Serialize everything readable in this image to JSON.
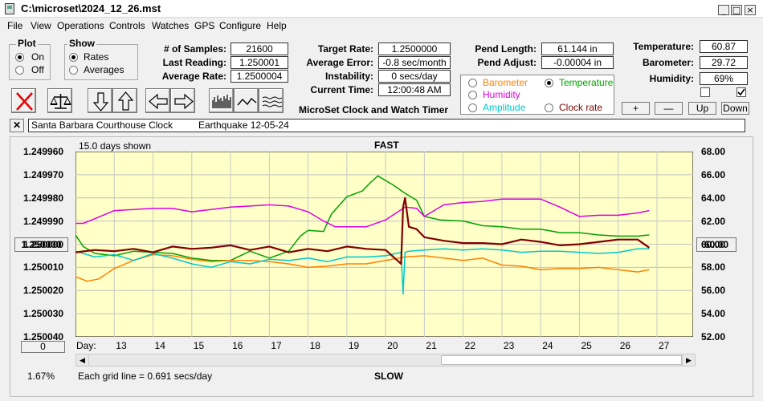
{
  "window": {
    "title": "C:\\microset\\2024_12_26.mst"
  },
  "menu": [
    "File",
    "View",
    "Operations",
    "Controls",
    "Watches",
    "GPS",
    "Configure",
    "Help"
  ],
  "plot_group": {
    "title": "Plot",
    "options": [
      "On",
      "Off"
    ],
    "selected": "On"
  },
  "show_group": {
    "title": "Show",
    "options": [
      "Rates",
      "Averages"
    ],
    "selected": "Rates"
  },
  "stats": {
    "samples_label": "# of Samples:",
    "samples": "21600",
    "last_label": "Last Reading:",
    "last": "1.250001",
    "avg_rate_label": "Average Rate:",
    "avg_rate": "1.2500004"
  },
  "rates": {
    "target_label": "Target Rate:",
    "target": "1.2500000",
    "avg_error_label": "Average Error:",
    "avg_error": "-0.8 sec/month",
    "instability_label": "Instability:",
    "instability": "0 secs/day",
    "time_label": "Current Time:",
    "time": "12:00:48 AM"
  },
  "app_name": "MicroSet Clock and Watch Timer",
  "pend": {
    "length_label": "Pend Length:",
    "length": "61.144 in",
    "adjust_label": "Pend Adjust:",
    "adjust": "-0.00004 in"
  },
  "env": {
    "temp_label": "Temperature:",
    "temp": "60.87",
    "baro_label": "Barometer:",
    "baro": "29.72",
    "hum_label": "Humidity:",
    "hum": "69%"
  },
  "legend": {
    "items": [
      {
        "label": "Barometer",
        "color": "#ff8000",
        "selected": false
      },
      {
        "label": "Temperature",
        "color": "#00a000",
        "selected": true
      },
      {
        "label": "Humidity",
        "color": "#e000e0",
        "selected": false
      },
      {
        "label": "Clock rate",
        "color": "#800000",
        "selected": false
      },
      {
        "label": "Amplitude",
        "color": "#00c8c8",
        "selected": false
      }
    ]
  },
  "adjust_buttons": [
    "+",
    "—",
    "Up",
    "Down"
  ],
  "checkboxes": [
    false,
    true
  ],
  "notes": {
    "clock": "Santa Barbara Courthouse Clock",
    "event": "Earthquake 12-05-24"
  },
  "chart": {
    "days_shown": "15.0 days shown",
    "fast_label": "FAST",
    "slow_label": "SLOW",
    "left_button": "1.250000",
    "right_button": "60.00",
    "zero_button": "0",
    "percent": "1.67%",
    "grid_note": "Each grid line = 0.691 secs/day",
    "day_label": "Day:"
  },
  "chart_data": {
    "type": "line",
    "y_left_ticks": [
      "1.249960",
      "1.249970",
      "1.249980",
      "1.249990",
      "1.250000",
      "1.250010",
      "1.250020",
      "1.250030",
      "1.250040"
    ],
    "y_right_ticks": [
      "68.00",
      "66.00",
      "64.00",
      "62.00",
      "60.00",
      "58.00",
      "56.00",
      "54.00",
      "52.00"
    ],
    "y_right_range": [
      52,
      68
    ],
    "x_range": [
      12,
      27
    ],
    "x_ticks": [
      13,
      14,
      15,
      16,
      17,
      18,
      19,
      20,
      21,
      22,
      23,
      24,
      25,
      26,
      27
    ],
    "grid": true,
    "series": [
      {
        "name": "Temperature",
        "color": "#00a000",
        "x": [
          12.0,
          12.2,
          12.5,
          13.0,
          13.5,
          14.0,
          14.5,
          15.0,
          15.5,
          16.0,
          16.5,
          17.0,
          17.5,
          17.8,
          18.0,
          18.4,
          18.6,
          19.0,
          19.4,
          19.6,
          19.8,
          20.2,
          20.5,
          20.8,
          21.0,
          21.4,
          22.0,
          22.5,
          23.0,
          23.5,
          24.0,
          24.5,
          25.0,
          25.5,
          26.0,
          26.5,
          26.8
        ],
        "y": [
          60.8,
          59.8,
          59.2,
          59.0,
          59.4,
          59.3,
          59.2,
          58.8,
          58.6,
          58.6,
          59.4,
          58.8,
          59.4,
          60.7,
          61.2,
          61.1,
          62.6,
          64.1,
          64.6,
          65.3,
          65.9,
          65.1,
          64.4,
          63.8,
          62.4,
          62.1,
          62.0,
          61.6,
          61.5,
          61.3,
          61.3,
          61.0,
          61.0,
          60.8,
          60.7,
          60.7,
          60.8
        ]
      },
      {
        "name": "Humidity",
        "color": "#e000e0",
        "x": [
          12.0,
          12.2,
          12.5,
          13.0,
          13.5,
          14.0,
          14.5,
          15.0,
          15.5,
          16.0,
          16.5,
          17.0,
          17.5,
          18.0,
          18.4,
          18.7,
          19.0,
          19.5,
          20.0,
          20.5,
          20.8,
          21.0,
          21.5,
          22.0,
          22.5,
          23.0,
          23.5,
          24.0,
          24.5,
          25.0,
          25.5,
          26.0,
          26.5,
          26.8
        ],
        "y": [
          61.8,
          61.8,
          62.2,
          62.9,
          63.0,
          63.1,
          63.1,
          62.8,
          63.0,
          63.2,
          63.3,
          63.4,
          63.3,
          62.8,
          62.0,
          61.5,
          61.5,
          61.5,
          62.1,
          63.2,
          63.1,
          62.4,
          63.4,
          63.6,
          63.7,
          63.9,
          63.9,
          63.9,
          63.2,
          62.4,
          62.5,
          62.5,
          62.7,
          62.9
        ]
      },
      {
        "name": "Barometer",
        "color": "#ff8000",
        "x": [
          12.0,
          12.3,
          12.6,
          13.0,
          13.5,
          14.0,
          14.5,
          15.0,
          15.5,
          16.0,
          16.5,
          17.0,
          17.5,
          18.0,
          18.5,
          19.0,
          19.5,
          20.0,
          20.5,
          21.0,
          21.5,
          22.0,
          22.5,
          23.0,
          23.5,
          24.0,
          24.5,
          25.0,
          25.5,
          26.0,
          26.5,
          26.8
        ],
        "y": [
          57.2,
          56.8,
          57.0,
          57.9,
          58.6,
          59.1,
          59.0,
          58.7,
          58.5,
          58.6,
          58.6,
          58.5,
          58.3,
          58.0,
          58.1,
          58.3,
          58.3,
          58.6,
          58.9,
          59.0,
          58.8,
          58.6,
          58.8,
          58.2,
          58.1,
          57.8,
          57.9,
          57.9,
          58.0,
          57.8,
          57.6,
          57.8
        ]
      },
      {
        "name": "Amplitude",
        "color": "#00c8c8",
        "x": [
          12.0,
          12.5,
          13.0,
          13.5,
          14.0,
          14.5,
          15.0,
          15.5,
          16.0,
          16.5,
          17.0,
          17.5,
          18.0,
          18.5,
          19.0,
          19.5,
          20.0,
          20.4,
          20.45,
          20.5,
          20.6,
          21.0,
          21.5,
          22.0,
          22.5,
          23.0,
          23.5,
          24.0,
          24.5,
          25.0,
          25.5,
          26.0,
          26.5,
          26.8
        ],
        "y": [
          59.4,
          58.9,
          59.1,
          58.6,
          59.2,
          58.8,
          58.3,
          58.0,
          58.5,
          58.3,
          58.7,
          58.6,
          58.8,
          58.5,
          58.9,
          58.9,
          59.0,
          59.3,
          55.7,
          59.3,
          59.4,
          59.5,
          59.6,
          59.5,
          59.6,
          59.5,
          59.3,
          59.4,
          59.4,
          59.3,
          59.2,
          59.3,
          59.6,
          59.6
        ]
      },
      {
        "name": "Clock rate",
        "color": "#800000",
        "x": [
          12.0,
          12.5,
          13.0,
          13.5,
          14.0,
          14.5,
          15.0,
          15.5,
          16.0,
          16.5,
          17.0,
          17.5,
          18.0,
          18.5,
          19.0,
          19.5,
          20.0,
          20.3,
          20.4,
          20.45,
          20.5,
          20.6,
          20.8,
          21.0,
          21.5,
          22.0,
          22.5,
          23.0,
          23.5,
          24.0,
          24.5,
          25.0,
          25.5,
          26.0,
          26.5,
          26.8
        ],
        "y": [
          59.3,
          59.5,
          59.4,
          59.6,
          59.3,
          59.8,
          59.6,
          59.7,
          59.9,
          59.5,
          59.8,
          59.3,
          59.6,
          59.4,
          59.8,
          59.6,
          59.5,
          58.6,
          58.3,
          63.2,
          64.0,
          61.5,
          61.3,
          60.6,
          60.3,
          60.1,
          60.1,
          60.0,
          60.4,
          60.2,
          59.9,
          60.0,
          60.2,
          60.4,
          60.4,
          59.7
        ]
      }
    ]
  }
}
